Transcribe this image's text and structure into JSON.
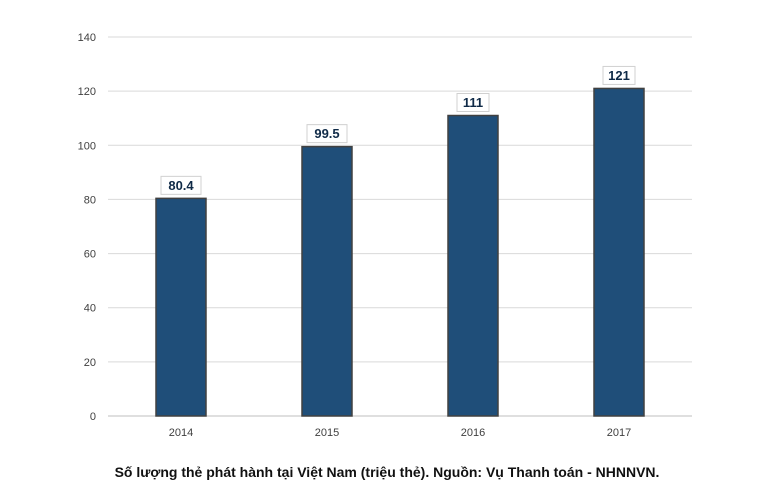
{
  "chart_data": {
    "type": "bar",
    "categories": [
      "2014",
      "2015",
      "2016",
      "2017"
    ],
    "values": [
      80.4,
      99.5,
      111,
      121
    ],
    "data_labels": [
      "80.4",
      "99.5",
      "111",
      "121"
    ],
    "yticks": [
      0,
      20,
      40,
      60,
      80,
      100,
      120,
      140
    ],
    "ylim": [
      0,
      140
    ],
    "grid": true,
    "legend": "none",
    "title": "",
    "xlabel": "",
    "ylabel": "",
    "bar_color": "#1f4e79",
    "bar_border_color": "#404040",
    "label_color": "#0f2a47"
  },
  "caption": "Số lượng thẻ phát hành tại Việt Nam (triệu thẻ). Nguồn: Vụ Thanh toán - NHNNVN."
}
